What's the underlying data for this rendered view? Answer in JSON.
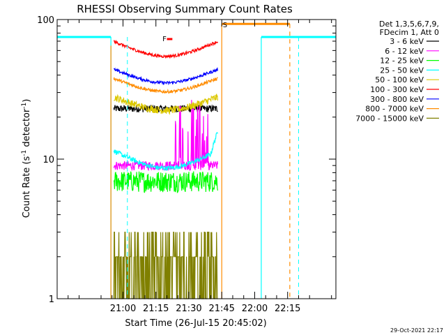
{
  "chart_data": {
    "type": "line",
    "title": "RHESSI Observing Summary Count Rates",
    "xlabel": "Start Time (26-Jul-15 20:45:02)",
    "ylabel_main": "Count Rate (s",
    "ylabel_sup1": "-1",
    "ylabel_mid": " detector",
    "ylabel_sup2": "-1",
    "ylabel_end": ")",
    "yscale": "log",
    "ylim": [
      1,
      100
    ],
    "xlim_minutes": [
      -15,
      112
    ],
    "y_tick_labels": [
      "1",
      "10",
      "100"
    ],
    "y_tick_values": [
      1,
      10,
      100
    ],
    "x_ticks": [
      {
        "label": "21:00",
        "minute": 15
      },
      {
        "label": "21:15",
        "minute": 30
      },
      {
        "label": "21:30",
        "minute": 45
      },
      {
        "label": "21:45",
        "minute": 60
      },
      {
        "label": "22:00",
        "minute": 75
      },
      {
        "label": "22:15",
        "minute": 90
      }
    ],
    "legend_header": [
      "Det 1,3,5,6,7,9,",
      "FDecim 1, Att 0"
    ],
    "legend_position": "right",
    "series": [
      {
        "name": "3 - 6 keV",
        "color": "#000000"
      },
      {
        "name": "6 - 12 keV",
        "color": "#ff00ff"
      },
      {
        "name": "12 - 25 keV",
        "color": "#00ff00"
      },
      {
        "name": "25 - 50 keV",
        "color": "#00ffff"
      },
      {
        "name": "50 - 100 keV",
        "color": "#dcc800"
      },
      {
        "name": "100 - 300 keV",
        "color": "#ff0000"
      },
      {
        "name": "300 - 800 keV",
        "color": "#0000ff"
      },
      {
        "name": "800 - 7000 keV",
        "color": "#ff8c00"
      },
      {
        "name": "7000 - 15000 keV",
        "color": "#808000"
      }
    ],
    "segments_minutes": [
      [
        10.5,
        58.5
      ]
    ],
    "annotations": [
      {
        "text": "F",
        "minute": 33,
        "value": 70
      },
      {
        "text": "S",
        "minute": 60.5,
        "value": 88
      }
    ],
    "timestamp": "29-Oct-2021 22:17"
  }
}
